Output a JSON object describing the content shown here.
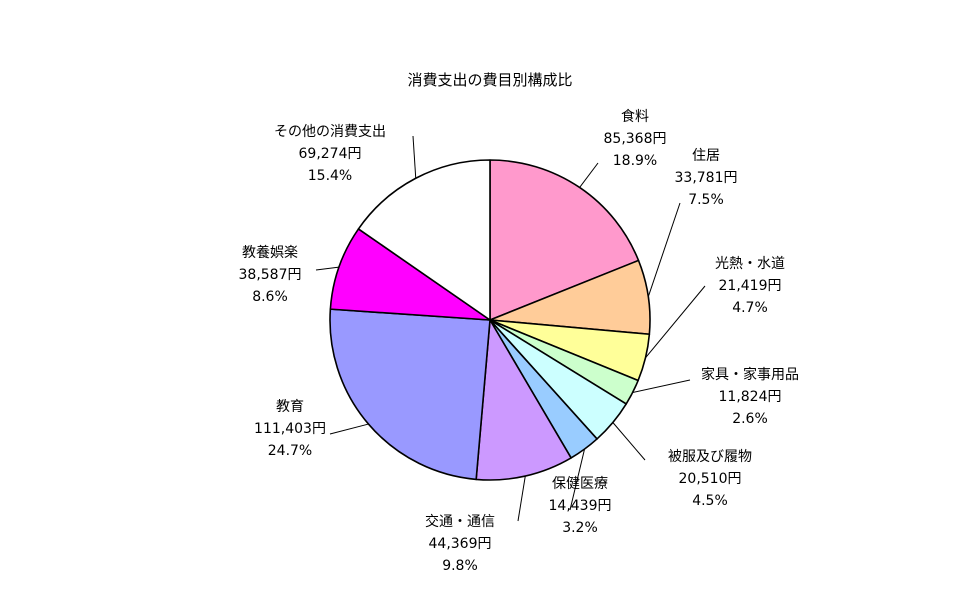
{
  "chart_data": {
    "type": "pie",
    "title": "消費支出の費目別構成比",
    "slices": [
      {
        "label": "食料",
        "amount": 85368,
        "amount_label": "85,368円",
        "percent": 18.9,
        "percent_label": "18.9%",
        "color": "#ff99cc"
      },
      {
        "label": "住居",
        "amount": 33781,
        "amount_label": "33,781円",
        "percent": 7.5,
        "percent_label": "7.5%",
        "color": "#ffcc99"
      },
      {
        "label": "光熱・水道",
        "amount": 21419,
        "amount_label": "21,419円",
        "percent": 4.7,
        "percent_label": "4.7%",
        "color": "#ffff99"
      },
      {
        "label": "家具・家事用品",
        "amount": 11824,
        "amount_label": "11,824円",
        "percent": 2.6,
        "percent_label": "2.6%",
        "color": "#ccffcc"
      },
      {
        "label": "被服及び履物",
        "amount": 20510,
        "amount_label": "20,510円",
        "percent": 4.5,
        "percent_label": "4.5%",
        "color": "#ccffff"
      },
      {
        "label": "保健医療",
        "amount": 14439,
        "amount_label": "14,439円",
        "percent": 3.2,
        "percent_label": "3.2%",
        "color": "#99ccff"
      },
      {
        "label": "交通・通信",
        "amount": 44369,
        "amount_label": "44,369円",
        "percent": 9.8,
        "percent_label": "9.8%",
        "color": "#cc99ff"
      },
      {
        "label": "教育",
        "amount": 111403,
        "amount_label": "111,403円",
        "percent": 24.7,
        "percent_label": "24.7%",
        "color": "#9999ff"
      },
      {
        "label": "教養娯楽",
        "amount": 38587,
        "amount_label": "38,587円",
        "percent": 8.6,
        "percent_label": "8.6%",
        "color": "#ff00ff"
      },
      {
        "label": "その他の消費支出",
        "amount": 69274,
        "amount_label": "69,274円",
        "percent": 15.4,
        "percent_label": "15.4%",
        "color": "#ffffff"
      }
    ]
  }
}
